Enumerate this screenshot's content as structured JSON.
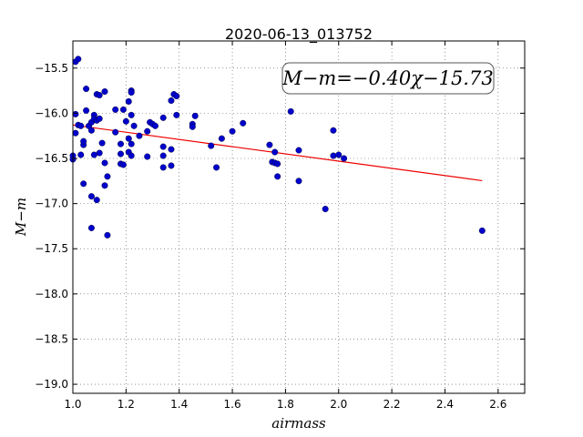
{
  "chart_data": {
    "type": "scatter",
    "title": "2020-06-13_013752",
    "xlabel": "airmass",
    "ylabel": "M−m",
    "xlim": [
      1.0,
      2.7
    ],
    "ylim": [
      -19.1,
      -15.2
    ],
    "xticks": [
      1.0,
      1.2,
      1.4,
      1.6,
      1.8,
      2.0,
      2.2,
      2.4,
      2.6
    ],
    "xtick_labels": [
      "1.0",
      "1.2",
      "1.4",
      "1.6",
      "1.8",
      "2.0",
      "2.2",
      "2.4",
      "2.6"
    ],
    "yticks": [
      -15.5,
      -16.0,
      -16.5,
      -17.0,
      -17.5,
      -18.0,
      -18.5,
      -19.0
    ],
    "ytick_labels": [
      "−15.5",
      "−16.0",
      "−16.5",
      "−17.0",
      "−17.5",
      "−18.0",
      "−18.5",
      "−19.0"
    ],
    "grid": true,
    "annotation": "M−m=−0.40χ−15.73",
    "colors": {
      "points": "#0000cc",
      "fit": "#ee0000",
      "grid": "#555555"
    },
    "fit": {
      "slope": -0.4,
      "intercept": -15.73,
      "x_range": [
        1.0,
        2.54
      ]
    },
    "points": [
      [
        1.0,
        -16.51
      ],
      [
        1.0,
        -16.47
      ],
      [
        1.01,
        -15.43
      ],
      [
        1.02,
        -15.4
      ],
      [
        1.01,
        -16.01
      ],
      [
        1.02,
        -16.13
      ],
      [
        1.01,
        -16.22
      ],
      [
        1.03,
        -16.14
      ],
      [
        1.04,
        -16.35
      ],
      [
        1.04,
        -16.31
      ],
      [
        1.03,
        -16.46
      ],
      [
        1.04,
        -16.78
      ],
      [
        1.05,
        -15.73
      ],
      [
        1.05,
        -15.97
      ],
      [
        1.06,
        -16.14
      ],
      [
        1.07,
        -16.1
      ],
      [
        1.08,
        -16.02
      ],
      [
        1.08,
        -16.06
      ],
      [
        1.07,
        -16.19
      ],
      [
        1.09,
        -16.08
      ],
      [
        1.08,
        -16.46
      ],
      [
        1.09,
        -15.79
      ],
      [
        1.1,
        -15.8
      ],
      [
        1.1,
        -16.06
      ],
      [
        1.1,
        -16.44
      ],
      [
        1.07,
        -16.92
      ],
      [
        1.09,
        -16.96
      ],
      [
        1.07,
        -17.27
      ],
      [
        1.12,
        -15.76
      ],
      [
        1.11,
        -16.33
      ],
      [
        1.12,
        -16.55
      ],
      [
        1.13,
        -16.7
      ],
      [
        1.12,
        -16.8
      ],
      [
        1.13,
        -17.35
      ],
      [
        1.16,
        -15.96
      ],
      [
        1.16,
        -16.21
      ],
      [
        1.18,
        -16.34
      ],
      [
        1.18,
        -16.45
      ],
      [
        1.18,
        -16.56
      ],
      [
        1.19,
        -16.57
      ],
      [
        1.19,
        -15.96
      ],
      [
        1.2,
        -16.09
      ],
      [
        1.21,
        -16.28
      ],
      [
        1.21,
        -15.87
      ],
      [
        1.22,
        -15.75
      ],
      [
        1.22,
        -15.77
      ],
      [
        1.22,
        -16.02
      ],
      [
        1.22,
        -16.34
      ],
      [
        1.21,
        -16.43
      ],
      [
        1.22,
        -16.47
      ],
      [
        1.23,
        -16.14
      ],
      [
        1.25,
        -16.25
      ],
      [
        1.28,
        -16.2
      ],
      [
        1.28,
        -16.48
      ],
      [
        1.29,
        -16.1
      ],
      [
        1.3,
        -16.12
      ],
      [
        1.31,
        -16.14
      ],
      [
        1.34,
        -16.05
      ],
      [
        1.34,
        -16.37
      ],
      [
        1.34,
        -16.47
      ],
      [
        1.34,
        -16.6
      ],
      [
        1.37,
        -15.86
      ],
      [
        1.38,
        -15.79
      ],
      [
        1.39,
        -15.81
      ],
      [
        1.37,
        -16.4
      ],
      [
        1.37,
        -16.58
      ],
      [
        1.39,
        -16.02
      ],
      [
        1.45,
        -16.12
      ],
      [
        1.45,
        -16.15
      ],
      [
        1.46,
        -16.03
      ],
      [
        1.52,
        -16.36
      ],
      [
        1.54,
        -16.6
      ],
      [
        1.56,
        -16.28
      ],
      [
        1.6,
        -16.2
      ],
      [
        1.64,
        -16.11
      ],
      [
        1.74,
        -16.35
      ],
      [
        1.75,
        -16.54
      ],
      [
        1.76,
        -16.43
      ],
      [
        1.76,
        -16.55
      ],
      [
        1.77,
        -16.56
      ],
      [
        1.77,
        -16.7
      ],
      [
        1.82,
        -15.98
      ],
      [
        1.85,
        -16.41
      ],
      [
        1.85,
        -16.75
      ],
      [
        1.95,
        -17.06
      ],
      [
        1.98,
        -16.47
      ],
      [
        1.98,
        -16.19
      ],
      [
        2.0,
        -16.46
      ],
      [
        2.02,
        -16.5
      ],
      [
        2.54,
        -17.3
      ]
    ]
  }
}
